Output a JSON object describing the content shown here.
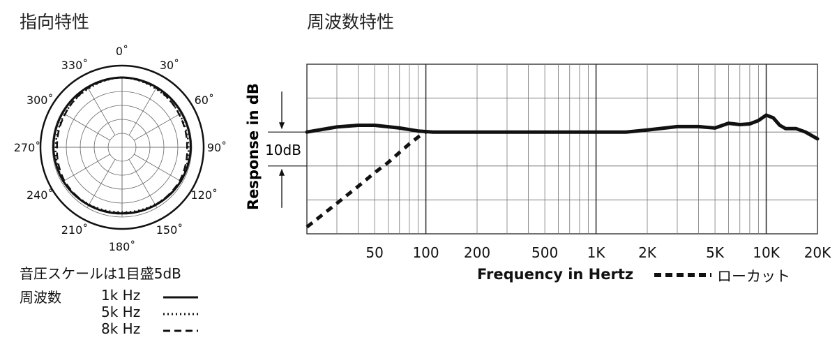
{
  "polar": {
    "title": "指向特性",
    "scale_note": "音圧スケールは1目盛5dB",
    "freq_label": "周波数",
    "angle_labels": [
      "0˚",
      "30˚",
      "60˚",
      "90˚",
      "120˚",
      "150˚",
      "180˚",
      "210˚",
      "240˚",
      "270˚",
      "300˚",
      "330˚"
    ],
    "legend": [
      {
        "label": "1k Hz",
        "style": "solid"
      },
      {
        "label": "5k Hz",
        "style": "dotted"
      },
      {
        "label": "8k Hz",
        "style": "dashed"
      }
    ]
  },
  "freq": {
    "title": "周波数特性",
    "ylabel": "Response in dB",
    "scale_label": "10dB",
    "xlabel": "Frequency in Hertz",
    "lowcut_label": "ローカット"
  },
  "chart_data": [
    {
      "type": "polar",
      "title": "指向特性",
      "angle_unit": "degrees",
      "ring_step_db": 5,
      "angle_ticks": [
        0,
        30,
        60,
        90,
        120,
        150,
        180,
        210,
        240,
        270,
        300,
        330
      ],
      "series": [
        {
          "name": "1k Hz",
          "style": "solid",
          "angles": [
            0,
            30,
            60,
            90,
            120,
            150,
            180,
            210,
            240,
            270,
            300,
            330
          ],
          "values": [
            0,
            -0.2,
            -0.4,
            -0.4,
            -0.7,
            -1.1,
            -1.3,
            -1.1,
            -0.7,
            -0.4,
            -0.4,
            -0.2
          ]
        },
        {
          "name": "5k Hz",
          "style": "dotted",
          "angles": [
            0,
            30,
            60,
            90,
            120,
            150,
            180,
            210,
            240,
            270,
            300,
            330
          ],
          "values": [
            0,
            -0.8,
            -1.3,
            -1.2,
            -0.7,
            -1.4,
            -1.8,
            -1.4,
            -0.7,
            -1.2,
            -1.3,
            -0.8
          ]
        },
        {
          "name": "8k Hz",
          "style": "dashed",
          "angles": [
            0,
            30,
            60,
            90,
            120,
            150,
            180,
            210,
            240,
            270,
            300,
            330
          ],
          "values": [
            0,
            -0.5,
            -1.4,
            -1.7,
            -1.1,
            -1.2,
            -1.5,
            -1.2,
            -1.1,
            -1.7,
            -1.4,
            -0.5
          ]
        }
      ]
    },
    {
      "type": "line",
      "title": "周波数特性",
      "xlabel": "Frequency in Hertz",
      "ylabel": "Response in dB",
      "xscale": "log",
      "xlim": [
        20,
        20000
      ],
      "x_tick_labels": [
        "50",
        "100",
        "200",
        "500",
        "1K",
        "2K",
        "5K",
        "10K",
        "20K"
      ],
      "x_tick_values": [
        50,
        100,
        200,
        500,
        1000,
        2000,
        5000,
        10000,
        20000
      ],
      "ylim": [
        -30,
        20
      ],
      "grid": true,
      "series": [
        {
          "name": "",
          "style": "solid",
          "x": [
            20,
            30,
            40,
            50,
            70,
            90,
            110,
            150,
            300,
            600,
            1000,
            1500,
            2000,
            3000,
            4000,
            5000,
            6000,
            7000,
            8000,
            9000,
            10000,
            11000,
            12000,
            13000,
            15000,
            17000,
            20000
          ],
          "y": [
            0,
            1.5,
            2,
            2,
            1.2,
            0.3,
            0,
            0,
            0,
            0,
            0,
            0,
            0.6,
            1.6,
            1.6,
            1.2,
            2.6,
            2.2,
            2.4,
            3.4,
            5.0,
            4.2,
            2.0,
            1.0,
            1.0,
            0,
            -2.0
          ]
        },
        {
          "name": "ローカット",
          "style": "dashed",
          "x": [
            20,
            30,
            40,
            50,
            60,
            70,
            80,
            90,
            100
          ],
          "y": [
            -28,
            -21,
            -16,
            -12,
            -9,
            -6,
            -3.5,
            -1.5,
            0
          ]
        }
      ]
    }
  ]
}
